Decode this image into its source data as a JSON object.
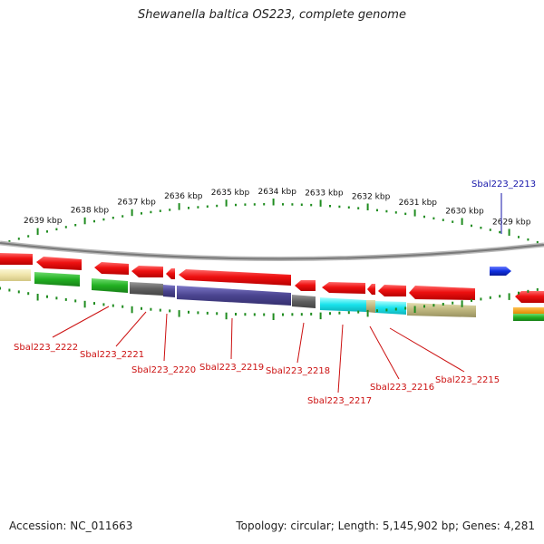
{
  "title": "Shewanella baltica OS223, complete genome",
  "footer": {
    "accession": "Accession: NC_011663",
    "topology": "Topology: circular; Length: 5,145,902 bp; Genes: 4,281"
  },
  "colors": {
    "backbone": "#8a8a8a",
    "ruler_tick": "#1f8c1f",
    "forward_gene": "#ee1111",
    "forward_gene_selected": "#1030e0",
    "gene_label": "#cc1111",
    "gene_label_selected": "#1515aa"
  },
  "ruler": {
    "unit": "kbp",
    "labels": [
      "2639 kbp",
      "2638 kbp",
      "2637 kbp",
      "2636 kbp",
      "2635 kbp",
      "2634 kbp",
      "2633 kbp",
      "2632 kbp",
      "2631 kbp",
      "2630 kbp",
      "2629 kbp"
    ]
  },
  "genes": [
    {
      "name": "Sbal223_2213",
      "strand": "forward",
      "selected": true
    },
    {
      "name": "Sbal223_2215",
      "strand": "reverse"
    },
    {
      "name": "Sbal223_2216",
      "strand": "reverse"
    },
    {
      "name": "Sbal223_2217",
      "strand": "reverse"
    },
    {
      "name": "Sbal223_2218",
      "strand": "reverse"
    },
    {
      "name": "Sbal223_2219",
      "strand": "reverse"
    },
    {
      "name": "Sbal223_2220",
      "strand": "reverse"
    },
    {
      "name": "Sbal223_2221",
      "strand": "reverse"
    },
    {
      "name": "Sbal223_2222",
      "strand": "reverse"
    }
  ]
}
